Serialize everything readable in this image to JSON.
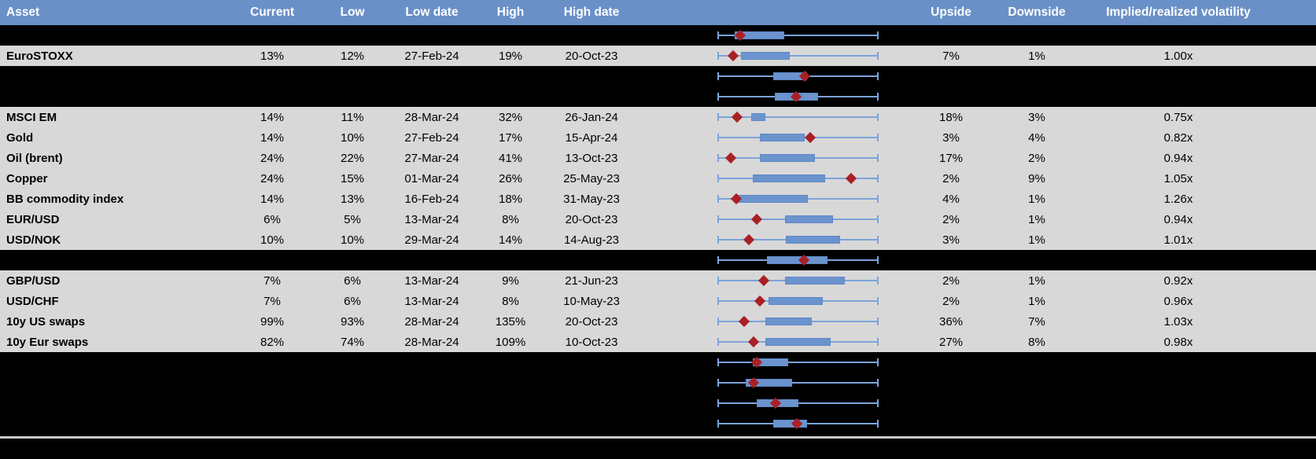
{
  "header": {
    "asset": "Asset",
    "current": "Current",
    "low": "Low",
    "low_date": "Low date",
    "high": "High",
    "high_date": "High date",
    "upside": "Upside",
    "downside": "Downside",
    "iv": "Implied/realized volatility"
  },
  "colors": {
    "header_bg": "#6A90C8",
    "header_text": "#FFFFFF",
    "row_light_bg": "#D8D8D8",
    "row_dark_bg": "#000000",
    "range_box_blue": "#6B93CE",
    "whisker_blue": "#7CA3DA",
    "diamond_red": "#A92025",
    "bottom_line_gray": "#CBC9C9"
  },
  "chart_data": {
    "type": "table",
    "description": "Implied volatility table; each row also shows a horizontal min-max range plot (whisker = full range, blue box = inner range, red diamond = current level). Plot positions are percent of the row's min-max span (0 = left whisker end, 100 = right whisker end).",
    "plot_units": "percent_of_range",
    "rows": [
      {
        "kind": "dark",
        "plot": {
          "box_start": 10.7,
          "box_end": 41.5,
          "diamond": 14.1
        }
      },
      {
        "kind": "light",
        "asset": "EuroSTOXX",
        "current": "13%",
        "low": "12%",
        "low_date": "27-Feb-24",
        "high": "19%",
        "high_date": "20-Oct-23",
        "upside": "7%",
        "downside": "1%",
        "iv": "1.00x",
        "plot": {
          "box_start": 14.6,
          "box_end": 44.9,
          "diamond": 9.8
        }
      },
      {
        "kind": "dark",
        "plot": {
          "box_start": 34.6,
          "box_end": 55.6,
          "diamond": 54.1
        }
      },
      {
        "kind": "dark",
        "plot": {
          "box_start": 35.6,
          "box_end": 62.4,
          "diamond": 48.8
        }
      },
      {
        "kind": "light",
        "asset": "MSCI EM",
        "current": "14%",
        "low": "11%",
        "low_date": "28-Mar-24",
        "high": "32%",
        "high_date": "26-Jan-24",
        "upside": "18%",
        "downside": "3%",
        "iv": "0.75x",
        "plot": {
          "box_start": 21.0,
          "box_end": 29.8,
          "diamond": 12.2
        }
      },
      {
        "kind": "light",
        "asset": "Gold",
        "current": "14%",
        "low": "10%",
        "low_date": "27-Feb-24",
        "high": "17%",
        "high_date": "15-Apr-24",
        "upside": "3%",
        "downside": "4%",
        "iv": "0.82x",
        "plot": {
          "box_start": 26.3,
          "box_end": 54.1,
          "diamond": 57.6
        }
      },
      {
        "kind": "light",
        "asset": "Oil (brent)",
        "current": "24%",
        "low": "22%",
        "low_date": "27-Mar-24",
        "high": "41%",
        "high_date": "13-Oct-23",
        "upside": "17%",
        "downside": "2%",
        "iv": "0.94x",
        "plot": {
          "box_start": 26.3,
          "box_end": 60.5,
          "diamond": 8.3
        }
      },
      {
        "kind": "light",
        "asset": "Copper",
        "current": "24%",
        "low": "15%",
        "low_date": "01-Mar-24",
        "high": "26%",
        "high_date": "25-May-23",
        "upside": "2%",
        "downside": "9%",
        "iv": "1.05x",
        "plot": {
          "box_start": 22.0,
          "box_end": 66.8,
          "diamond": 82.9
        }
      },
      {
        "kind": "light",
        "asset": "BB commodity index",
        "current": "14%",
        "low": "13%",
        "low_date": "16-Feb-24",
        "high": "18%",
        "high_date": "31-May-23",
        "upside": "4%",
        "downside": "1%",
        "iv": "1.26x",
        "plot": {
          "box_start": 12.7,
          "box_end": 56.1,
          "diamond": 11.7
        }
      },
      {
        "kind": "light",
        "asset": "EUR/USD",
        "current": "6%",
        "low": "5%",
        "low_date": "13-Mar-24",
        "high": "8%",
        "high_date": "20-Oct-23",
        "upside": "2%",
        "downside": "1%",
        "iv": "0.94x",
        "plot": {
          "box_start": 42.0,
          "box_end": 71.7,
          "diamond": 24.4
        }
      },
      {
        "kind": "light",
        "asset": "USD/NOK",
        "current": "10%",
        "low": "10%",
        "low_date": "29-Mar-24",
        "high": "14%",
        "high_date": "14-Aug-23",
        "upside": "3%",
        "downside": "1%",
        "iv": "1.01x",
        "plot": {
          "box_start": 42.4,
          "box_end": 76.1,
          "diamond": 19.5
        }
      },
      {
        "kind": "dark",
        "plot": {
          "box_start": 30.7,
          "box_end": 68.3,
          "diamond": 53.7
        }
      },
      {
        "kind": "light",
        "asset": "GBP/USD",
        "current": "7%",
        "low": "6%",
        "low_date": "13-Mar-24",
        "high": "9%",
        "high_date": "21-Jun-23",
        "upside": "2%",
        "downside": "1%",
        "iv": "0.92x",
        "plot": {
          "box_start": 42.0,
          "box_end": 79.0,
          "diamond": 28.8
        }
      },
      {
        "kind": "light",
        "asset": "USD/CHF",
        "current": "7%",
        "low": "6%",
        "low_date": "13-Mar-24",
        "high": "8%",
        "high_date": "10-May-23",
        "upside": "2%",
        "downside": "1%",
        "iv": "0.96x",
        "plot": {
          "box_start": 31.7,
          "box_end": 65.4,
          "diamond": 26.3
        }
      },
      {
        "kind": "light",
        "asset": "10y US swaps",
        "current": "99%",
        "low": "93%",
        "low_date": "28-Mar-24",
        "high": "135%",
        "high_date": "20-Oct-23",
        "upside": "36%",
        "downside": "7%",
        "iv": "1.03x",
        "plot": {
          "box_start": 29.8,
          "box_end": 58.5,
          "diamond": 16.6
        }
      },
      {
        "kind": "light",
        "asset": "10y Eur swaps",
        "current": "82%",
        "low": "74%",
        "low_date": "28-Mar-24",
        "high": "109%",
        "high_date": "10-Oct-23",
        "upside": "27%",
        "downside": "8%",
        "iv": "0.98x",
        "plot": {
          "box_start": 29.8,
          "box_end": 70.2,
          "diamond": 22.4
        }
      },
      {
        "kind": "dark",
        "plot": {
          "box_start": 22.0,
          "box_end": 43.9,
          "diamond": 24.4
        }
      },
      {
        "kind": "dark",
        "plot": {
          "box_start": 17.6,
          "box_end": 46.3,
          "diamond": 22.4
        }
      },
      {
        "kind": "dark",
        "plot": {
          "box_start": 24.4,
          "box_end": 50.2,
          "diamond": 36.1
        }
      },
      {
        "kind": "dark",
        "plot": {
          "box_start": 34.6,
          "box_end": 55.6,
          "diamond": 49.3
        }
      }
    ]
  }
}
